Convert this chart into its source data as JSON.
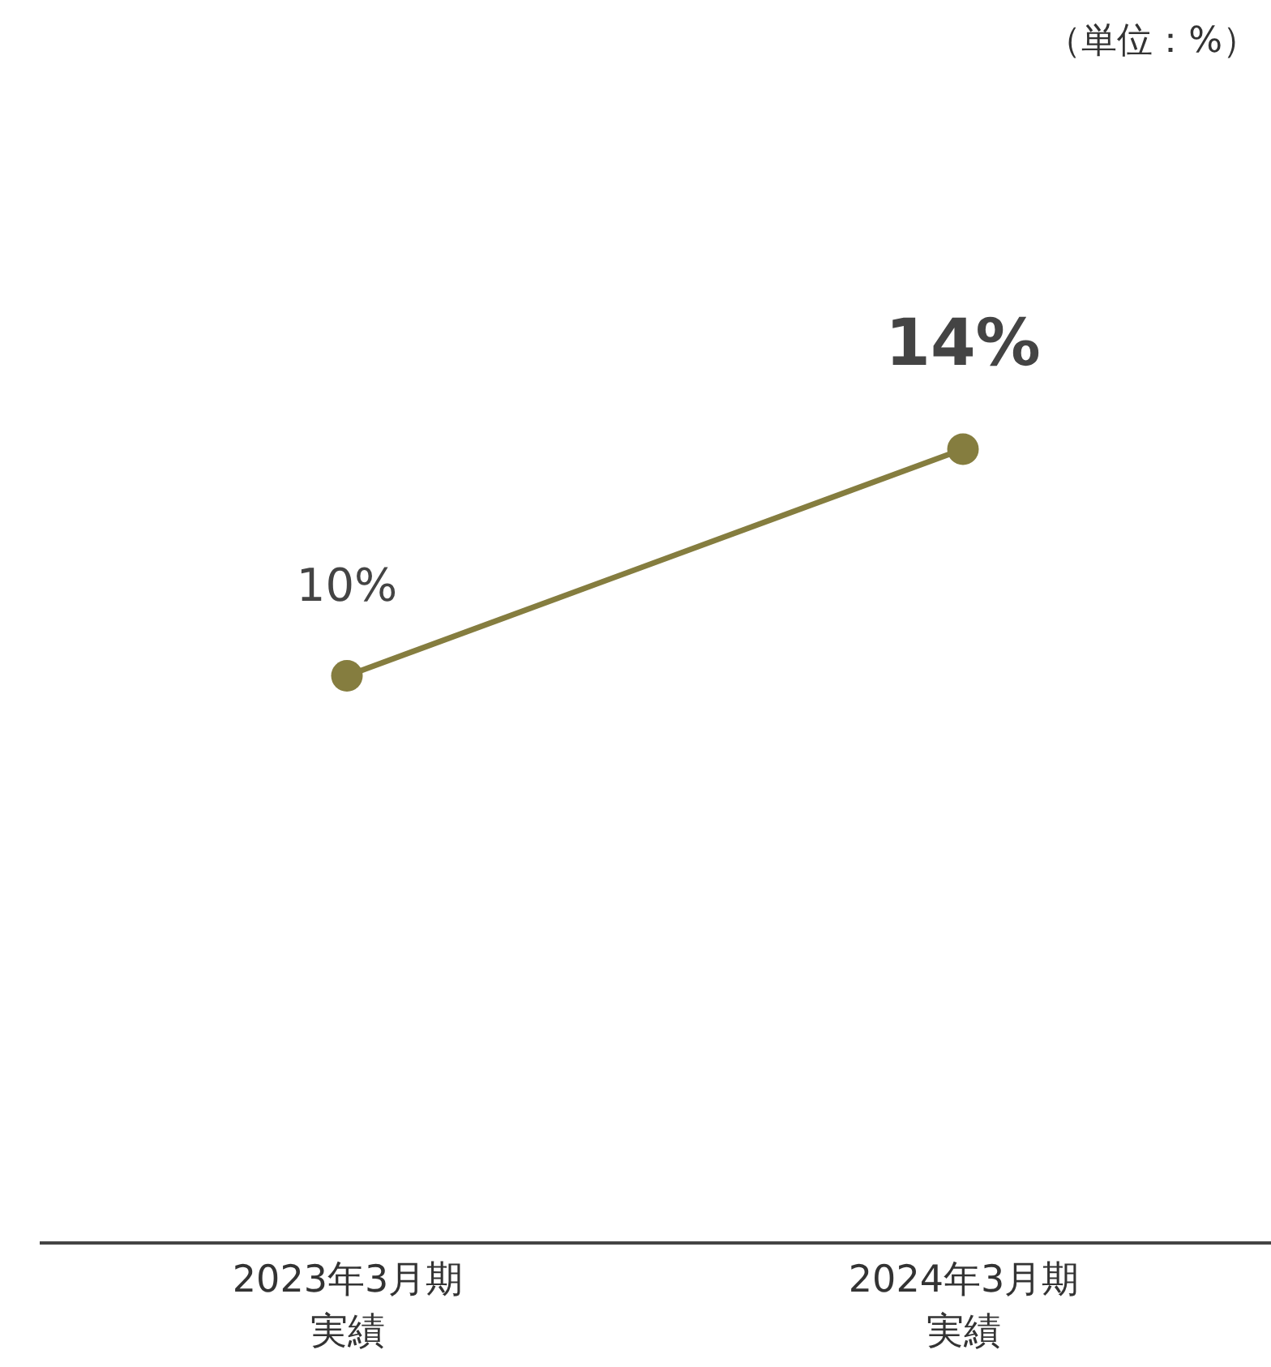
{
  "chart_data": {
    "type": "line",
    "categories": [
      "2023年3月期実績",
      "2024年3月期実績"
    ],
    "series": [
      {
        "color": "#857d3f",
        "values": [
          10,
          14
        ],
        "value_labels": [
          "10%",
          "14%"
        ]
      }
    ],
    "marker": "circle",
    "line_style": "solid",
    "grid": false,
    "tick_labels": "x",
    "annotations": [
      "（単位：%）"
    ]
  }
}
